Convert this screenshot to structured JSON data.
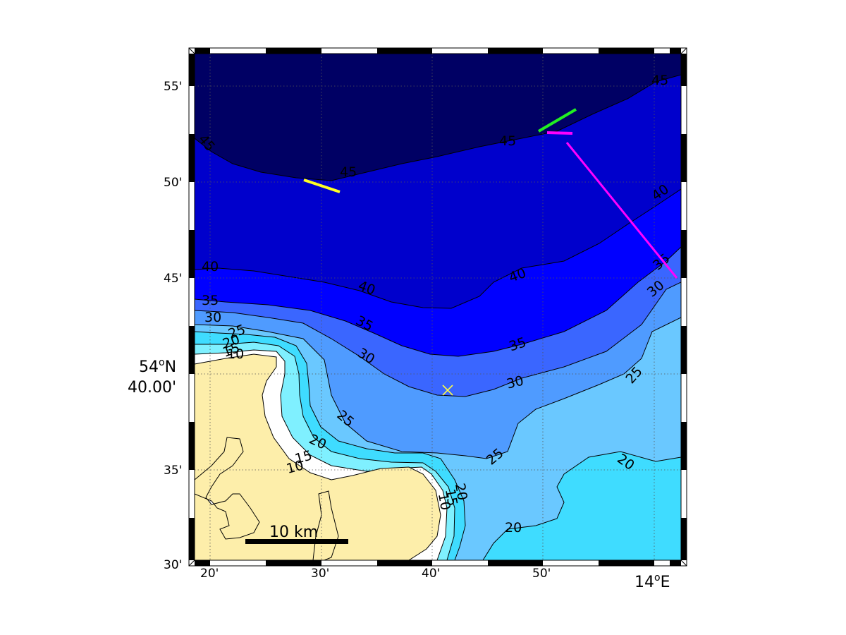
{
  "map": {
    "lon_ticks": [
      "20'",
      "30'",
      "40'",
      "50'"
    ],
    "lon_corner_label": {
      "deg": "14",
      "sup": "o",
      "hemi": "E"
    },
    "lat_ticks": [
      "55'",
      "50'",
      "45'",
      "35'",
      "30'"
    ],
    "lat_center_label": {
      "line1_deg": "54",
      "line1_sup": "o",
      "line1_hemi": "N",
      "line2": "40.00'"
    },
    "scale_bar": {
      "label": "10 km"
    },
    "depth_levels": [
      10,
      15,
      20,
      25,
      30,
      35,
      40,
      45
    ],
    "contour_labels": {
      "c45_a": "45",
      "c45_b": "45",
      "c45_c": "45",
      "c45_d": "45",
      "c40_a": "40",
      "c40_b": "40",
      "c40_c": "40",
      "c40_d": "40",
      "c35_a": "35",
      "c35_b": "35",
      "c35_c": "35",
      "c35_d": "35",
      "c30_a": "30",
      "c30_b": "30",
      "c30_c": "30",
      "c30_d": "30",
      "c25_a": "25",
      "c25_b": "25",
      "c25_c": "25",
      "c25_d": "25",
      "c20_a": "20",
      "c20_b": "20",
      "c20_c": "20",
      "c20_d": "20",
      "c20_e": "20",
      "c15_a": "15",
      "c15_b": "15",
      "c15_c": "15",
      "c10_a": "10",
      "c10_b": "10",
      "c10_c": "10"
    },
    "colors": {
      "land": "#fdeeaa",
      "shallow": "#ffffff",
      "d10": "#7ff0ff",
      "d15": "#3fdcff",
      "d20": "#6ac8ff",
      "d25": "#4f9bff",
      "d30": "#3a66ff",
      "d35": "#0000ff",
      "d40": "#0000cc",
      "d45": "#000064",
      "track_yellow": "#ffff22",
      "track_green": "#22ee22",
      "track_magenta": "#ff00ff",
      "marker": "#ffff44"
    },
    "tracks": [
      "yellow-track",
      "green-track",
      "magenta-track"
    ],
    "marker_icon": "x-marker-icon"
  }
}
